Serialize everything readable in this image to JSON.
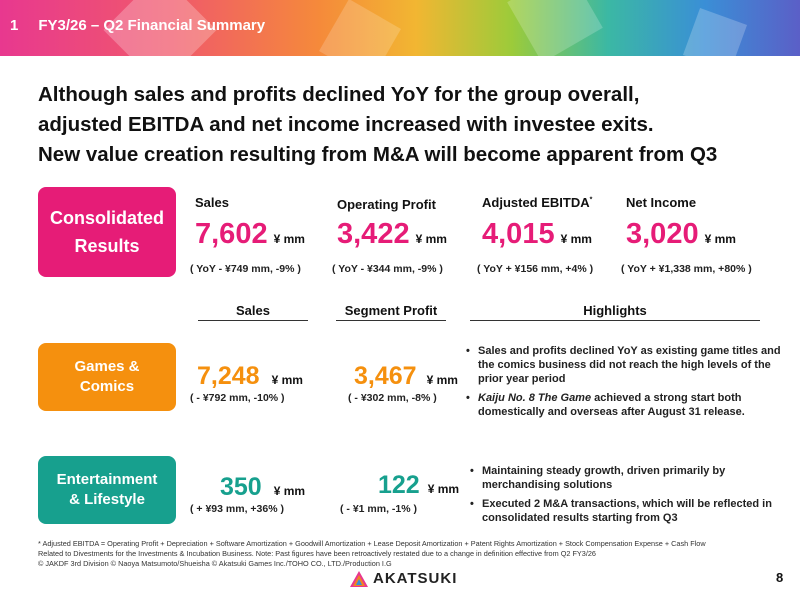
{
  "banner": {
    "number": "1",
    "title": "FY3/26 – Q2 Financial Summary"
  },
  "headline": [
    "Although sales and profits declined YoY for the group overall,",
    "adjusted EBITDA and net income increased with investee exits.",
    "New value creation resulting from M&A will become apparent from Q3"
  ],
  "consolidated": {
    "label_line1": "Consolidated",
    "label_line2": "Results",
    "metrics": [
      {
        "label": "Sales",
        "value": "7,602",
        "unit": "¥ mm",
        "yoy": "( YoY - ¥749 mm, -9% )"
      },
      {
        "label": "Operating Profit",
        "value": "3,422",
        "unit": "¥ mm",
        "yoy": "( YoY - ¥344 mm, -9% )"
      },
      {
        "label": "Adjusted EBITDA",
        "label_mark": "*",
        "value": "4,015",
        "unit": "¥ mm",
        "yoy": "( YoY  + ¥156 mm, +4% )"
      },
      {
        "label": "Net Income",
        "value": "3,020",
        "unit": "¥ mm",
        "yoy": "( YoY  + ¥1,338 mm, +80% )"
      }
    ]
  },
  "columns": {
    "sales": "Sales",
    "segment_profit": "Segment Profit",
    "highlights": "Highlights"
  },
  "segments": [
    {
      "label_line1": "Games &",
      "label_line2": "Comics",
      "sales": "7,248",
      "sales_unit": "¥ mm",
      "sales_yoy": "( - ¥792 mm, -10% )",
      "profit": "3,467",
      "profit_unit": "¥ mm",
      "profit_yoy": "( - ¥302 mm, -8% )",
      "highlights": [
        {
          "text": "Sales and profits declined YoY as existing game titles and the comics business did not reach the high levels of the prior year period"
        },
        {
          "italic": "Kaiju No. 8 The Game",
          "text": " achieved a strong start both domestically and overseas after August 31 release."
        }
      ]
    },
    {
      "label_line1": "Entertainment",
      "label_line2": "& Lifestyle",
      "sales": "350",
      "sales_unit": "¥ mm",
      "sales_yoy": "( + ¥93 mm, +36% )",
      "profit": "122",
      "profit_unit": "¥ mm",
      "profit_yoy": "( - ¥1 mm, -1% )",
      "highlights": [
        {
          "text": "Maintaining steady growth, driven primarily by merchandising solutions"
        },
        {
          "text": "Executed 2 M&A transactions, which will be reflected in consolidated results starting from Q3"
        }
      ]
    }
  ],
  "footnote": {
    "line1": "* Adjusted EBITDA = Operating Profit + Depreciation + Software Amortization + Goodwill Amortization + Lease Deposit Amortization + Patent Rights Amortization + Stock Compensation Expense + Cash Flow",
    "line2": "Related to Divestments for the Investments & Incubation Business. Note: Past figures have been retroactively restated due to a change in definition effective from Q2 FY3/26",
    "line3": "© JAKDF 3rd Division  © Naoya Matsumoto/Shueisha  © Akatsuki Games Inc./TOHO CO., LTD./Production I.G"
  },
  "logo": {
    "text": "AKATSUKI"
  },
  "page_number": "8"
}
